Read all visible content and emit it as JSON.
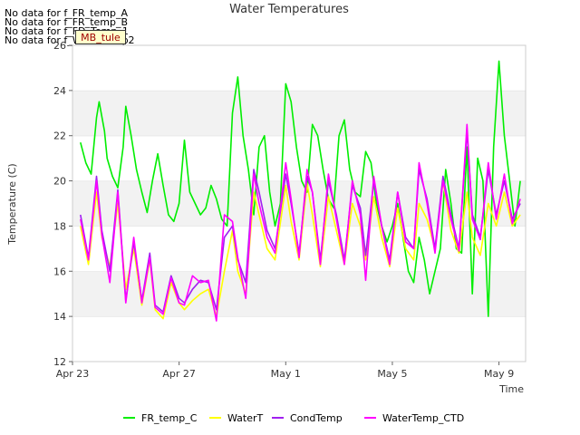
{
  "nodata_messages": [
    "No data for f_FR_temp_A",
    "No data for f_FR_temp_B",
    "No data for f_FD_Temp_1",
    "No data for f_WaterTemp2"
  ],
  "badge": "MB_tule",
  "chart_data": {
    "type": "line",
    "title": "Water Temperatures",
    "xlabel": "Time",
    "ylabel": "Temperature (C)",
    "x_ticks": [
      "Apr 23",
      "Apr 27",
      "May 1",
      "May 5",
      "May 9"
    ],
    "x_tick_days": [
      0,
      4,
      8,
      12,
      16
    ],
    "xlim_days": [
      0,
      17
    ],
    "ylim": [
      12,
      26
    ],
    "y_ticks": [
      12,
      14,
      16,
      18,
      20,
      22,
      24,
      26
    ],
    "grid": "horizontal bands",
    "legend_position": "bottom",
    "series": [
      {
        "name": "FR_temp_C",
        "color": "#00ee00",
        "x": [
          0.3,
          0.5,
          0.7,
          0.9,
          1.0,
          1.2,
          1.3,
          1.5,
          1.7,
          1.9,
          2.0,
          2.2,
          2.4,
          2.6,
          2.8,
          3.0,
          3.2,
          3.4,
          3.6,
          3.8,
          4.0,
          4.2,
          4.4,
          4.6,
          4.8,
          5.0,
          5.2,
          5.4,
          5.6,
          5.8,
          6.0,
          6.2,
          6.4,
          6.6,
          6.8,
          7.0,
          7.2,
          7.4,
          7.6,
          7.8,
          8.0,
          8.2,
          8.4,
          8.6,
          8.8,
          9.0,
          9.2,
          9.4,
          9.6,
          9.8,
          10.0,
          10.2,
          10.4,
          10.6,
          10.8,
          11.0,
          11.2,
          11.4,
          11.6,
          11.8,
          12.0,
          12.2,
          12.4,
          12.6,
          12.8,
          13.0,
          13.2,
          13.4,
          13.6,
          13.8,
          14.0,
          14.2,
          14.4,
          14.6,
          14.8,
          15.0,
          15.2,
          15.4,
          15.6,
          15.8,
          16.0,
          16.2,
          16.4,
          16.6,
          16.8
        ],
        "values": [
          21.7,
          20.8,
          20.3,
          22.8,
          23.5,
          22.2,
          21.0,
          20.2,
          19.7,
          21.5,
          23.3,
          22.0,
          20.5,
          19.5,
          18.6,
          20.0,
          21.2,
          19.8,
          18.5,
          18.2,
          19.0,
          21.8,
          19.5,
          19.0,
          18.5,
          18.8,
          19.8,
          19.2,
          18.3,
          18.0,
          23.0,
          24.6,
          22.0,
          20.5,
          18.5,
          21.5,
          22.0,
          19.5,
          18.0,
          19.0,
          24.3,
          23.5,
          21.5,
          20.0,
          19.5,
          22.5,
          22.0,
          20.5,
          19.2,
          18.8,
          22.0,
          22.7,
          20.5,
          19.5,
          19.3,
          21.3,
          20.8,
          19.0,
          18.0,
          17.3,
          18.0,
          19.0,
          17.5,
          16.0,
          15.5,
          17.5,
          16.5,
          15.0,
          16.0,
          17.0,
          20.5,
          19.0,
          17.0,
          16.8,
          21.5,
          15.0,
          21.0,
          20.0,
          14.0,
          21.5,
          25.3,
          22.0,
          20.0,
          18.0,
          20.0
        ]
      },
      {
        "name": "WaterT",
        "color": "#ffff00",
        "x": [
          0.3,
          0.6,
          0.9,
          1.1,
          1.4,
          1.7,
          2.0,
          2.3,
          2.6,
          2.9,
          3.1,
          3.4,
          3.7,
          4.0,
          4.2,
          4.5,
          4.8,
          5.1,
          5.4,
          5.7,
          6.0,
          6.2,
          6.5,
          6.8,
          7.0,
          7.3,
          7.6,
          8.0,
          8.2,
          8.5,
          8.8,
          9.0,
          9.3,
          9.6,
          9.9,
          10.2,
          10.5,
          10.8,
          11.0,
          11.3,
          11.6,
          11.9,
          12.2,
          12.5,
          12.8,
          13.0,
          13.3,
          13.6,
          13.9,
          14.2,
          14.5,
          14.8,
          15.0,
          15.3,
          15.6,
          15.9,
          16.2,
          16.5,
          16.8
        ],
        "values": [
          18.0,
          16.3,
          19.5,
          17.5,
          16.2,
          19.0,
          15.2,
          17.0,
          14.5,
          16.5,
          14.3,
          13.9,
          15.5,
          14.6,
          14.3,
          14.7,
          15.0,
          15.2,
          14.0,
          16.0,
          17.8,
          16.0,
          15.0,
          19.5,
          18.5,
          17.0,
          16.5,
          19.8,
          18.2,
          16.5,
          19.9,
          18.5,
          16.2,
          19.3,
          17.8,
          16.3,
          19.0,
          18.0,
          16.5,
          19.3,
          17.5,
          16.2,
          18.8,
          17.0,
          16.5,
          19.0,
          18.3,
          17.0,
          20.0,
          17.8,
          16.8,
          19.5,
          17.5,
          16.7,
          19.0,
          18.0,
          19.5,
          18.0,
          18.5
        ]
      },
      {
        "name": "CondTemp",
        "color": "#a020f0",
        "x": [
          0.3,
          0.6,
          0.9,
          1.1,
          1.4,
          1.7,
          2.0,
          2.3,
          2.6,
          2.9,
          3.1,
          3.4,
          3.7,
          4.0,
          4.2,
          4.5,
          4.8,
          5.1,
          5.4,
          5.7,
          6.0,
          6.2,
          6.5,
          6.8,
          7.0,
          7.3,
          7.6,
          8.0,
          8.2,
          8.5,
          8.8,
          9.0,
          9.3,
          9.6,
          9.9,
          10.2,
          10.5,
          10.8,
          11.0,
          11.3,
          11.6,
          11.9,
          12.2,
          12.5,
          12.8,
          13.0,
          13.3,
          13.6,
          13.9,
          14.2,
          14.5,
          14.8,
          15.0,
          15.3,
          15.6,
          15.9,
          16.2,
          16.5,
          16.8
        ],
        "values": [
          18.5,
          16.6,
          20.2,
          17.8,
          16.0,
          19.6,
          14.7,
          17.3,
          14.7,
          16.8,
          14.5,
          14.2,
          15.8,
          14.8,
          14.6,
          15.2,
          15.6,
          15.5,
          14.3,
          17.5,
          18.0,
          16.5,
          15.5,
          20.5,
          19.5,
          17.8,
          17.0,
          20.3,
          19.0,
          16.8,
          20.2,
          19.5,
          16.5,
          20.0,
          18.5,
          16.5,
          19.8,
          18.8,
          16.7,
          20.0,
          18.0,
          16.5,
          19.5,
          17.5,
          17.0,
          20.5,
          19.2,
          17.0,
          20.2,
          18.5,
          17.0,
          22.2,
          18.5,
          17.5,
          20.5,
          18.5,
          20.0,
          18.3,
          19.0
        ]
      },
      {
        "name": "WaterTemp_CTD",
        "color": "#ff00ff",
        "x": [
          0.3,
          0.6,
          0.9,
          1.1,
          1.4,
          1.7,
          2.0,
          2.3,
          2.6,
          2.9,
          3.1,
          3.4,
          3.7,
          4.0,
          4.2,
          4.5,
          4.8,
          5.1,
          5.4,
          5.7,
          6.0,
          6.2,
          6.5,
          6.8,
          7.0,
          7.3,
          7.6,
          8.0,
          8.2,
          8.5,
          8.8,
          9.0,
          9.3,
          9.6,
          9.9,
          10.2,
          10.5,
          10.8,
          11.0,
          11.3,
          11.6,
          11.9,
          12.2,
          12.5,
          12.8,
          13.0,
          13.3,
          13.6,
          13.9,
          14.2,
          14.5,
          14.8,
          15.0,
          15.3,
          15.6,
          15.9,
          16.2,
          16.5,
          16.8
        ],
        "values": [
          18.3,
          16.5,
          20.0,
          17.6,
          15.5,
          19.5,
          14.6,
          17.5,
          14.6,
          16.6,
          14.4,
          14.1,
          15.7,
          14.6,
          14.5,
          15.8,
          15.5,
          15.6,
          13.8,
          18.5,
          18.2,
          16.6,
          14.8,
          20.3,
          19.0,
          17.5,
          16.8,
          20.8,
          19.2,
          16.6,
          20.5,
          19.5,
          16.3,
          20.3,
          18.3,
          16.3,
          20.0,
          18.5,
          15.6,
          20.2,
          18.0,
          16.3,
          19.5,
          17.3,
          17.0,
          20.8,
          19.0,
          16.8,
          20.0,
          18.3,
          16.9,
          22.5,
          18.3,
          17.4,
          20.8,
          18.3,
          20.3,
          18.1,
          19.2
        ]
      }
    ]
  }
}
